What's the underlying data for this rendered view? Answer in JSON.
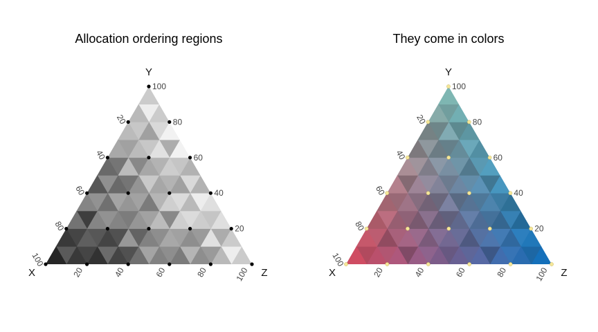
{
  "chart_data": [
    {
      "type": "ternary",
      "title": "Allocation ordering regions",
      "vertex_labels": {
        "left": "X",
        "top": "Y",
        "right": "Z"
      },
      "ticks": {
        "x_axis": [
          "20",
          "40",
          "60",
          "80",
          "100"
        ],
        "y_axis": [
          "100",
          "80",
          "60",
          "40",
          "20"
        ],
        "bottom": [
          "20",
          "40",
          "60",
          "80",
          "100"
        ]
      },
      "palette": "grayscale",
      "colors": {
        "dark": "#1a1a1a",
        "light": "#f2f2f2",
        "point": "#000000"
      },
      "points": [
        {
          "x": 100,
          "y": 0,
          "z": 0
        },
        {
          "x": 80,
          "y": 20,
          "z": 0
        },
        {
          "x": 60,
          "y": 40,
          "z": 0
        },
        {
          "x": 40,
          "y": 60,
          "z": 0
        },
        {
          "x": 20,
          "y": 80,
          "z": 0
        },
        {
          "x": 0,
          "y": 100,
          "z": 0
        },
        {
          "x": 80,
          "y": 0,
          "z": 20
        },
        {
          "x": 60,
          "y": 20,
          "z": 20
        },
        {
          "x": 40,
          "y": 40,
          "z": 20
        },
        {
          "x": 20,
          "y": 60,
          "z": 20
        },
        {
          "x": 0,
          "y": 80,
          "z": 20
        },
        {
          "x": 60,
          "y": 0,
          "z": 40
        },
        {
          "x": 40,
          "y": 20,
          "z": 40
        },
        {
          "x": 20,
          "y": 40,
          "z": 40
        },
        {
          "x": 0,
          "y": 60,
          "z": 40
        },
        {
          "x": 40,
          "y": 0,
          "z": 60
        },
        {
          "x": 20,
          "y": 20,
          "z": 60
        },
        {
          "x": 0,
          "y": 40,
          "z": 60
        },
        {
          "x": 20,
          "y": 0,
          "z": 80
        },
        {
          "x": 0,
          "y": 20,
          "z": 80
        },
        {
          "x": 0,
          "y": 0,
          "z": 100
        }
      ]
    },
    {
      "type": "ternary",
      "title": "They come in colors",
      "vertex_labels": {
        "left": "X",
        "top": "Y",
        "right": "Z"
      },
      "ticks": {
        "x_axis": [
          "20",
          "40",
          "60",
          "80",
          "100"
        ],
        "y_axis": [
          "100",
          "80",
          "60",
          "40",
          "20"
        ],
        "bottom": [
          "20",
          "40",
          "60",
          "80",
          "100"
        ]
      },
      "palette": "color",
      "colors": {
        "x_corner": "#d9475c",
        "y_corner": "#7fbdb5",
        "z_corner": "#0a6fbd",
        "point": "#f5e79a"
      },
      "points": [
        {
          "x": 100,
          "y": 0,
          "z": 0
        },
        {
          "x": 80,
          "y": 20,
          "z": 0
        },
        {
          "x": 60,
          "y": 40,
          "z": 0
        },
        {
          "x": 40,
          "y": 60,
          "z": 0
        },
        {
          "x": 20,
          "y": 80,
          "z": 0
        },
        {
          "x": 0,
          "y": 100,
          "z": 0
        },
        {
          "x": 80,
          "y": 0,
          "z": 20
        },
        {
          "x": 60,
          "y": 20,
          "z": 20
        },
        {
          "x": 40,
          "y": 40,
          "z": 20
        },
        {
          "x": 20,
          "y": 60,
          "z": 20
        },
        {
          "x": 0,
          "y": 80,
          "z": 20
        },
        {
          "x": 60,
          "y": 0,
          "z": 40
        },
        {
          "x": 40,
          "y": 20,
          "z": 40
        },
        {
          "x": 20,
          "y": 40,
          "z": 40
        },
        {
          "x": 0,
          "y": 60,
          "z": 40
        },
        {
          "x": 40,
          "y": 0,
          "z": 60
        },
        {
          "x": 20,
          "y": 20,
          "z": 60
        },
        {
          "x": 0,
          "y": 40,
          "z": 60
        },
        {
          "x": 20,
          "y": 0,
          "z": 80
        },
        {
          "x": 0,
          "y": 20,
          "z": 80
        },
        {
          "x": 0,
          "y": 0,
          "z": 100
        }
      ]
    }
  ]
}
